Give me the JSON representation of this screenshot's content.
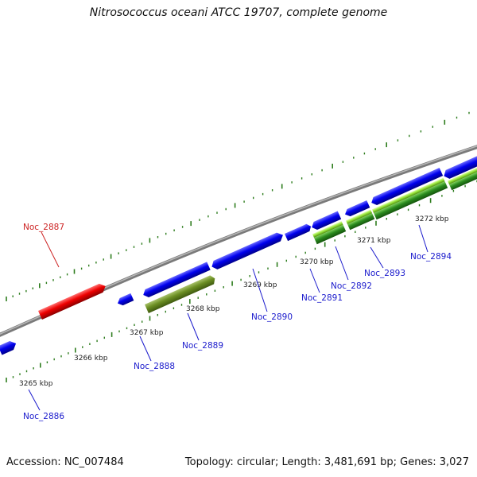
{
  "title": "Nitrosococcus oceani ATCC 19707, complete genome",
  "footer": {
    "accession": "Accession: NC_007484",
    "summary": "Topology: circular; Length: 3,481,691 bp; Genes: 3,027"
  },
  "colors": {
    "backbone": "#8c8c8c",
    "tick": "#2e7d1e",
    "label_blue": "#1a1acc",
    "label_red": "#cc2222",
    "gene_blue": "#0000ee",
    "gene_red": "#ee0000",
    "gene_olive": "#6b8e23",
    "gene_lime": "#9ae63c"
  },
  "ruler": [
    "3265 kbp",
    "3266 kbp",
    "3267 kbp",
    "3268 kbp",
    "3269 kbp",
    "3270 kbp",
    "3271 kbp",
    "3272 kbp"
  ],
  "gene_labels": [
    "Noc_2886",
    "Noc_2887",
    "Noc_2888",
    "Noc_2889",
    "Noc_2890",
    "Noc_2891",
    "Noc_2892",
    "Noc_2893",
    "Noc_2894"
  ]
}
